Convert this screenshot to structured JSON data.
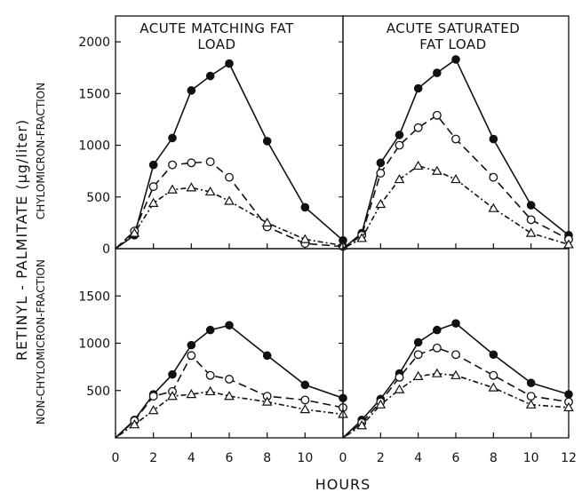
{
  "figure": {
    "ylabel": "RETINYL - PALMITATE (μg/liter)",
    "xlabel": "HOURS"
  },
  "chart_data": [
    {
      "type": "line",
      "panel": "top-left",
      "title": "ACUTE MATCHING FAT LOAD",
      "ylabel": "CHYLOMICRON-FRACTION",
      "xlim": [
        0,
        12
      ],
      "ylim": [
        0,
        2250
      ],
      "yticks": [
        0,
        500,
        1000,
        1500,
        2000
      ],
      "xticks": [
        0,
        2,
        4,
        6,
        8,
        10
      ],
      "x": [
        0,
        1,
        2,
        3,
        4,
        5,
        6,
        8,
        10,
        12
      ],
      "series": [
        {
          "marker": "filled-circle",
          "line": "solid",
          "values": [
            0,
            130,
            810,
            1070,
            1530,
            1670,
            1790,
            1040,
            400,
            80
          ]
        },
        {
          "marker": "open-circle",
          "line": "dashed",
          "values": [
            0,
            170,
            600,
            810,
            830,
            840,
            690,
            210,
            50,
            20
          ]
        },
        {
          "marker": "open-triangle",
          "line": "dotted",
          "values": [
            0,
            150,
            440,
            570,
            590,
            550,
            460,
            250,
            90,
            30
          ]
        }
      ]
    },
    {
      "type": "line",
      "panel": "top-right",
      "title": "ACUTE SATURATED FAT LOAD",
      "xlim": [
        0,
        12
      ],
      "ylim": [
        0,
        2250
      ],
      "xticks": [
        0,
        2,
        4,
        6,
        8,
        10,
        12
      ],
      "x": [
        0,
        1,
        2,
        3,
        4,
        5,
        6,
        8,
        10,
        12
      ],
      "series": [
        {
          "marker": "filled-circle",
          "line": "solid",
          "values": [
            0,
            150,
            830,
            1100,
            1550,
            1700,
            1830,
            1060,
            420,
            130
          ]
        },
        {
          "marker": "open-circle",
          "line": "dashed",
          "values": [
            0,
            130,
            730,
            1000,
            1170,
            1290,
            1060,
            690,
            280,
            90
          ]
        },
        {
          "marker": "open-triangle",
          "line": "dotted",
          "values": [
            0,
            100,
            430,
            670,
            800,
            750,
            670,
            390,
            150,
            40
          ]
        }
      ]
    },
    {
      "type": "line",
      "panel": "bottom-left",
      "ylabel": "NON-CHYLOMICRON-FRACTION",
      "xlim": [
        0,
        12
      ],
      "ylim": [
        0,
        2000
      ],
      "yticks": [
        500,
        1000,
        1500
      ],
      "xticks": [
        0,
        2,
        4,
        6,
        8,
        10
      ],
      "x": [
        0,
        1,
        2,
        3,
        4,
        5,
        6,
        8,
        10,
        12
      ],
      "series": [
        {
          "marker": "filled-circle",
          "line": "solid",
          "values": [
            0,
            190,
            460,
            670,
            980,
            1140,
            1190,
            870,
            560,
            420
          ]
        },
        {
          "marker": "open-circle",
          "line": "dashed",
          "values": [
            0,
            180,
            440,
            490,
            870,
            660,
            620,
            440,
            400,
            320
          ]
        },
        {
          "marker": "open-triangle",
          "line": "dotted",
          "values": [
            0,
            140,
            290,
            440,
            460,
            490,
            440,
            380,
            300,
            250
          ]
        }
      ]
    },
    {
      "type": "line",
      "panel": "bottom-right",
      "xlim": [
        0,
        12
      ],
      "ylim": [
        0,
        2000
      ],
      "xticks": [
        0,
        2,
        4,
        6,
        8,
        10,
        12
      ],
      "x": [
        0,
        1,
        2,
        3,
        4,
        5,
        6,
        8,
        10,
        12
      ],
      "series": [
        {
          "marker": "filled-circle",
          "line": "solid",
          "values": [
            0,
            190,
            410,
            680,
            1010,
            1140,
            1210,
            880,
            580,
            460
          ]
        },
        {
          "marker": "open-circle",
          "line": "dashed",
          "values": [
            0,
            160,
            380,
            640,
            880,
            950,
            880,
            660,
            440,
            380
          ]
        },
        {
          "marker": "open-triangle",
          "line": "dotted",
          "values": [
            0,
            130,
            350,
            510,
            650,
            680,
            660,
            530,
            350,
            320
          ]
        }
      ]
    }
  ]
}
